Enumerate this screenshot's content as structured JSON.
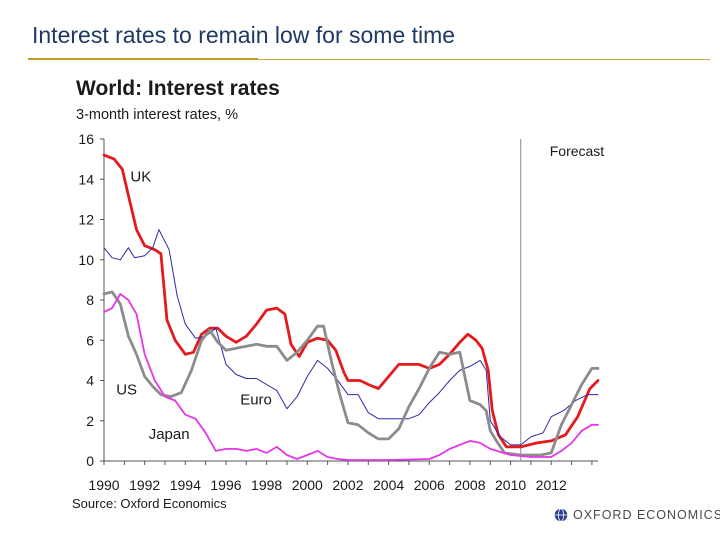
{
  "slide": {
    "title": "Interest rates to remain low for some time"
  },
  "footer": {
    "logo_text": "OXFORD ECONOMICS",
    "logo_icon": "globe-icon"
  },
  "chart_data": {
    "type": "line",
    "title": "World: Interest rates",
    "subtitle": "3-month interest rates, %",
    "source": "Source: Oxford Economics",
    "xlim": [
      1990,
      2014.3
    ],
    "ylim": [
      0,
      16
    ],
    "yticks": [
      0,
      2,
      4,
      6,
      8,
      10,
      12,
      14,
      16
    ],
    "xticks": [
      1990,
      1992,
      1994,
      1996,
      1998,
      2000,
      2002,
      2004,
      2006,
      2008,
      2010,
      2012
    ],
    "forecast_start": 2010.5,
    "forecast_label": "Forecast",
    "series": [
      {
        "name": "UK",
        "label": "UK",
        "color": "#e41a1c",
        "width": 2.8,
        "label_pos": [
          1991.3,
          13.9
        ],
        "points": [
          [
            1990,
            15.2
          ],
          [
            1990.5,
            15.0
          ],
          [
            1990.9,
            14.5
          ],
          [
            1991.2,
            13.2
          ],
          [
            1991.6,
            11.5
          ],
          [
            1992,
            10.7
          ],
          [
            1992.5,
            10.5
          ],
          [
            1992.8,
            10.3
          ],
          [
            1993.1,
            7.0
          ],
          [
            1993.5,
            6.0
          ],
          [
            1994,
            5.3
          ],
          [
            1994.4,
            5.4
          ],
          [
            1994.8,
            6.3
          ],
          [
            1995.2,
            6.6
          ],
          [
            1995.6,
            6.6
          ],
          [
            1996,
            6.2
          ],
          [
            1996.5,
            5.9
          ],
          [
            1997,
            6.2
          ],
          [
            1997.5,
            6.8
          ],
          [
            1998,
            7.5
          ],
          [
            1998.5,
            7.6
          ],
          [
            1998.9,
            7.3
          ],
          [
            1999.2,
            5.8
          ],
          [
            1999.6,
            5.2
          ],
          [
            2000,
            5.9
          ],
          [
            2000.5,
            6.1
          ],
          [
            2001,
            6.0
          ],
          [
            2001.4,
            5.5
          ],
          [
            2001.8,
            4.4
          ],
          [
            2002,
            4.0
          ],
          [
            2002.6,
            4.0
          ],
          [
            2003,
            3.8
          ],
          [
            2003.5,
            3.6
          ],
          [
            2004,
            4.2
          ],
          [
            2004.5,
            4.8
          ],
          [
            2005,
            4.8
          ],
          [
            2005.5,
            4.8
          ],
          [
            2006,
            4.6
          ],
          [
            2006.5,
            4.8
          ],
          [
            2007,
            5.3
          ],
          [
            2007.5,
            5.9
          ],
          [
            2007.9,
            6.3
          ],
          [
            2008.3,
            6.0
          ],
          [
            2008.6,
            5.6
          ],
          [
            2008.9,
            4.5
          ],
          [
            2009.1,
            2.5
          ],
          [
            2009.4,
            1.3
          ],
          [
            2009.8,
            0.7
          ],
          [
            2010.5,
            0.7
          ],
          [
            2011.3,
            0.9
          ],
          [
            2012,
            1.0
          ],
          [
            2012.7,
            1.3
          ],
          [
            2013.3,
            2.2
          ],
          [
            2013.9,
            3.6
          ],
          [
            2014.3,
            4.0
          ]
        ]
      },
      {
        "name": "Euro",
        "label": "Euro",
        "color": "#2b2ba8",
        "width": 1.0,
        "label_pos": [
          1996.7,
          2.8
        ],
        "points": [
          [
            1990,
            10.6
          ],
          [
            1990.4,
            10.1
          ],
          [
            1990.8,
            10.0
          ],
          [
            1991.2,
            10.6
          ],
          [
            1991.5,
            10.1
          ],
          [
            1992,
            10.2
          ],
          [
            1992.4,
            10.6
          ],
          [
            1992.7,
            11.5
          ],
          [
            1993.2,
            10.5
          ],
          [
            1993.6,
            8.2
          ],
          [
            1994,
            6.8
          ],
          [
            1994.5,
            6.1
          ],
          [
            1995,
            6.2
          ],
          [
            1995.5,
            6.6
          ],
          [
            1996,
            4.8
          ],
          [
            1996.5,
            4.3
          ],
          [
            1997,
            4.1
          ],
          [
            1997.5,
            4.1
          ],
          [
            1998,
            3.8
          ],
          [
            1998.5,
            3.5
          ],
          [
            1999,
            2.6
          ],
          [
            1999.5,
            3.2
          ],
          [
            2000,
            4.2
          ],
          [
            2000.5,
            5.0
          ],
          [
            2001,
            4.6
          ],
          [
            2001.5,
            4.0
          ],
          [
            2002,
            3.3
          ],
          [
            2002.5,
            3.3
          ],
          [
            2003,
            2.4
          ],
          [
            2003.5,
            2.1
          ],
          [
            2004,
            2.1
          ],
          [
            2005,
            2.1
          ],
          [
            2005.5,
            2.3
          ],
          [
            2006,
            2.9
          ],
          [
            2006.5,
            3.4
          ],
          [
            2007,
            4.0
          ],
          [
            2007.5,
            4.5
          ],
          [
            2008,
            4.7
          ],
          [
            2008.5,
            5.0
          ],
          [
            2008.8,
            4.5
          ],
          [
            2009,
            2.0
          ],
          [
            2009.5,
            1.2
          ],
          [
            2010,
            0.8
          ],
          [
            2010.5,
            0.8
          ],
          [
            2011,
            1.2
          ],
          [
            2011.6,
            1.4
          ],
          [
            2012,
            2.2
          ],
          [
            2012.6,
            2.5
          ],
          [
            2013.2,
            3.0
          ],
          [
            2013.8,
            3.3
          ],
          [
            2014.3,
            3.3
          ]
        ]
      },
      {
        "name": "US",
        "label": "US",
        "color": "#8c8c8c",
        "width": 2.8,
        "label_pos": [
          1990.6,
          3.3
        ],
        "points": [
          [
            1990,
            8.3
          ],
          [
            1990.4,
            8.4
          ],
          [
            1990.8,
            7.8
          ],
          [
            1991.2,
            6.2
          ],
          [
            1991.6,
            5.3
          ],
          [
            1992,
            4.2
          ],
          [
            1992.4,
            3.7
          ],
          [
            1992.8,
            3.3
          ],
          [
            1993.3,
            3.2
          ],
          [
            1993.8,
            3.4
          ],
          [
            1994.3,
            4.5
          ],
          [
            1994.8,
            6.0
          ],
          [
            1995.2,
            6.5
          ],
          [
            1995.6,
            5.9
          ],
          [
            1996,
            5.5
          ],
          [
            1996.5,
            5.6
          ],
          [
            1997,
            5.7
          ],
          [
            1997.5,
            5.8
          ],
          [
            1998,
            5.7
          ],
          [
            1998.5,
            5.7
          ],
          [
            1999,
            5.0
          ],
          [
            1999.5,
            5.4
          ],
          [
            2000,
            6.0
          ],
          [
            2000.5,
            6.7
          ],
          [
            2000.8,
            6.7
          ],
          [
            2001.2,
            4.9
          ],
          [
            2001.6,
            3.3
          ],
          [
            2002,
            1.9
          ],
          [
            2002.5,
            1.8
          ],
          [
            2003,
            1.4
          ],
          [
            2003.5,
            1.1
          ],
          [
            2004,
            1.1
          ],
          [
            2004.5,
            1.6
          ],
          [
            2005,
            2.7
          ],
          [
            2005.5,
            3.6
          ],
          [
            2006,
            4.6
          ],
          [
            2006.5,
            5.4
          ],
          [
            2007,
            5.3
          ],
          [
            2007.5,
            5.4
          ],
          [
            2008,
            3.0
          ],
          [
            2008.5,
            2.8
          ],
          [
            2008.8,
            2.5
          ],
          [
            2009,
            1.5
          ],
          [
            2009.3,
            1.0
          ],
          [
            2009.7,
            0.4
          ],
          [
            2010.5,
            0.3
          ],
          [
            2011.5,
            0.3
          ],
          [
            2012,
            0.4
          ],
          [
            2012.5,
            1.8
          ],
          [
            2013,
            2.8
          ],
          [
            2013.5,
            3.8
          ],
          [
            2014,
            4.6
          ],
          [
            2014.3,
            4.6
          ]
        ]
      },
      {
        "name": "Japan",
        "label": "Japan",
        "color": "#e636e6",
        "width": 1.8,
        "label_pos": [
          1992.2,
          1.1
        ],
        "points": [
          [
            1990,
            7.4
          ],
          [
            1990.4,
            7.6
          ],
          [
            1990.8,
            8.3
          ],
          [
            1991.2,
            8.0
          ],
          [
            1991.6,
            7.3
          ],
          [
            1992,
            5.3
          ],
          [
            1992.5,
            4.0
          ],
          [
            1993,
            3.2
          ],
          [
            1993.5,
            3.0
          ],
          [
            1994,
            2.3
          ],
          [
            1994.5,
            2.1
          ],
          [
            1995,
            1.4
          ],
          [
            1995.5,
            0.5
          ],
          [
            1996,
            0.6
          ],
          [
            1996.5,
            0.6
          ],
          [
            1997,
            0.5
          ],
          [
            1997.5,
            0.6
          ],
          [
            1998,
            0.4
          ],
          [
            1998.5,
            0.7
          ],
          [
            1999,
            0.3
          ],
          [
            1999.5,
            0.1
          ],
          [
            2000,
            0.3
          ],
          [
            2000.5,
            0.5
          ],
          [
            2001,
            0.2
          ],
          [
            2001.5,
            0.1
          ],
          [
            2002,
            0.05
          ],
          [
            2004,
            0.05
          ],
          [
            2006,
            0.1
          ],
          [
            2006.5,
            0.3
          ],
          [
            2007,
            0.6
          ],
          [
            2007.5,
            0.8
          ],
          [
            2008,
            1.0
          ],
          [
            2008.5,
            0.9
          ],
          [
            2009,
            0.6
          ],
          [
            2010,
            0.3
          ],
          [
            2011,
            0.2
          ],
          [
            2012,
            0.2
          ],
          [
            2012.5,
            0.5
          ],
          [
            2013,
            0.9
          ],
          [
            2013.5,
            1.5
          ],
          [
            2014,
            1.8
          ],
          [
            2014.3,
            1.8
          ]
        ]
      }
    ]
  }
}
